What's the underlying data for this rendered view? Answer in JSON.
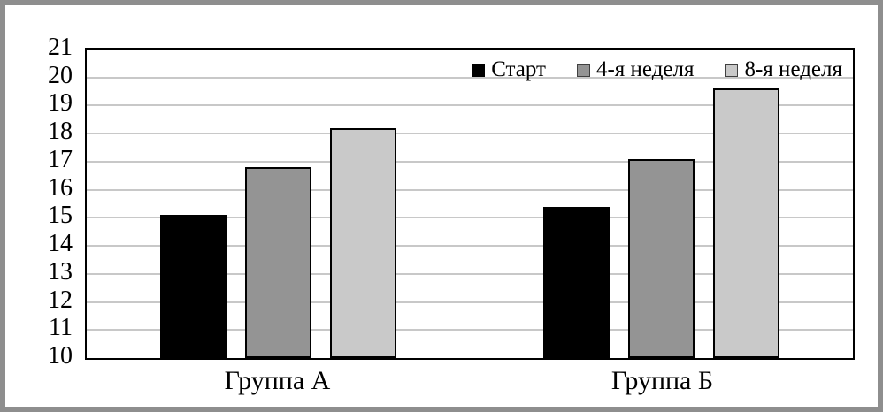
{
  "frame": {
    "border_color": "#8e8e8e",
    "background": "#ffffff"
  },
  "chart_data": {
    "type": "bar",
    "title": "",
    "xlabel": "",
    "ylabel": "",
    "categories": [
      "Группа А",
      "Группа Б"
    ],
    "series": [
      {
        "name": "Старт",
        "color": "#000000",
        "swatch_border": "#000000",
        "values": [
          15.1,
          15.4
        ]
      },
      {
        "name": "4-я неделя",
        "color": "#949494",
        "swatch_border": "#404040",
        "values": [
          16.8,
          17.1
        ]
      },
      {
        "name": "8-я неделя",
        "color": "#c9c9c9",
        "swatch_border": "#404040",
        "values": [
          18.2,
          19.6
        ]
      }
    ],
    "ylim": [
      10,
      21
    ],
    "yticks": [
      10,
      11,
      12,
      13,
      14,
      15,
      16,
      17,
      18,
      19,
      20,
      21
    ],
    "grid": true,
    "gridline_color": "#c8c8c8",
    "axis_color": "#000000",
    "legend_position": "top-right-inside"
  }
}
